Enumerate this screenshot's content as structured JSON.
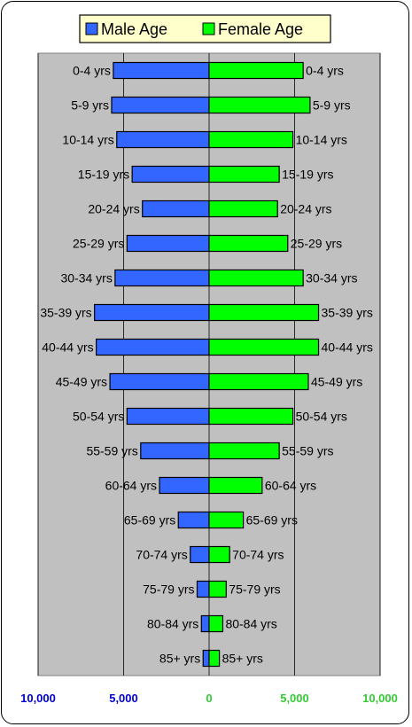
{
  "chart_data": {
    "type": "bar",
    "orientation": "horizontal",
    "layout": "population-pyramid",
    "categories": [
      "0-4 yrs",
      "5-9 yrs",
      "10-14 yrs",
      "15-19 yrs",
      "20-24 yrs",
      "25-29 yrs",
      "30-34 yrs",
      "35-39 yrs",
      "40-44 yrs",
      "45-49 yrs",
      "50-54 yrs",
      "55-59 yrs",
      "60-64 yrs",
      "65-69 yrs",
      "70-74 yrs",
      "75-79 yrs",
      "80-84 yrs",
      "85+ yrs"
    ],
    "series": [
      {
        "name": "Male Age",
        "color": "#3366ff",
        "side": "left",
        "values": [
          5600,
          5700,
          5400,
          4500,
          3900,
          4800,
          5500,
          6700,
          6600,
          5800,
          4800,
          4000,
          2900,
          1800,
          1100,
          700,
          450,
          350
        ]
      },
      {
        "name": "Female Age",
        "color": "#00ff00",
        "side": "right",
        "values": [
          5500,
          5900,
          4900,
          4100,
          4000,
          4600,
          5500,
          6400,
          6400,
          5800,
          4900,
          4100,
          3100,
          2000,
          1200,
          1000,
          800,
          600
        ]
      }
    ],
    "xlim": [
      -10000,
      10000
    ],
    "x_ticks": [
      {
        "value": -10000,
        "label": "10,000",
        "color": "#0000cc"
      },
      {
        "value": -5000,
        "label": "5,000",
        "color": "#0000cc"
      },
      {
        "value": 0,
        "label": "0",
        "color": "#33cc33"
      },
      {
        "value": 5000,
        "label": "5,000",
        "color": "#33cc33"
      },
      {
        "value": 10000,
        "label": "10,000",
        "color": "#33cc33"
      }
    ],
    "title": "",
    "xlabel": "",
    "ylabel": "",
    "grid": true,
    "legend_position": "top"
  },
  "colors": {
    "plot_background": "#c0c0c0",
    "legend_background": "#ffffcc"
  }
}
